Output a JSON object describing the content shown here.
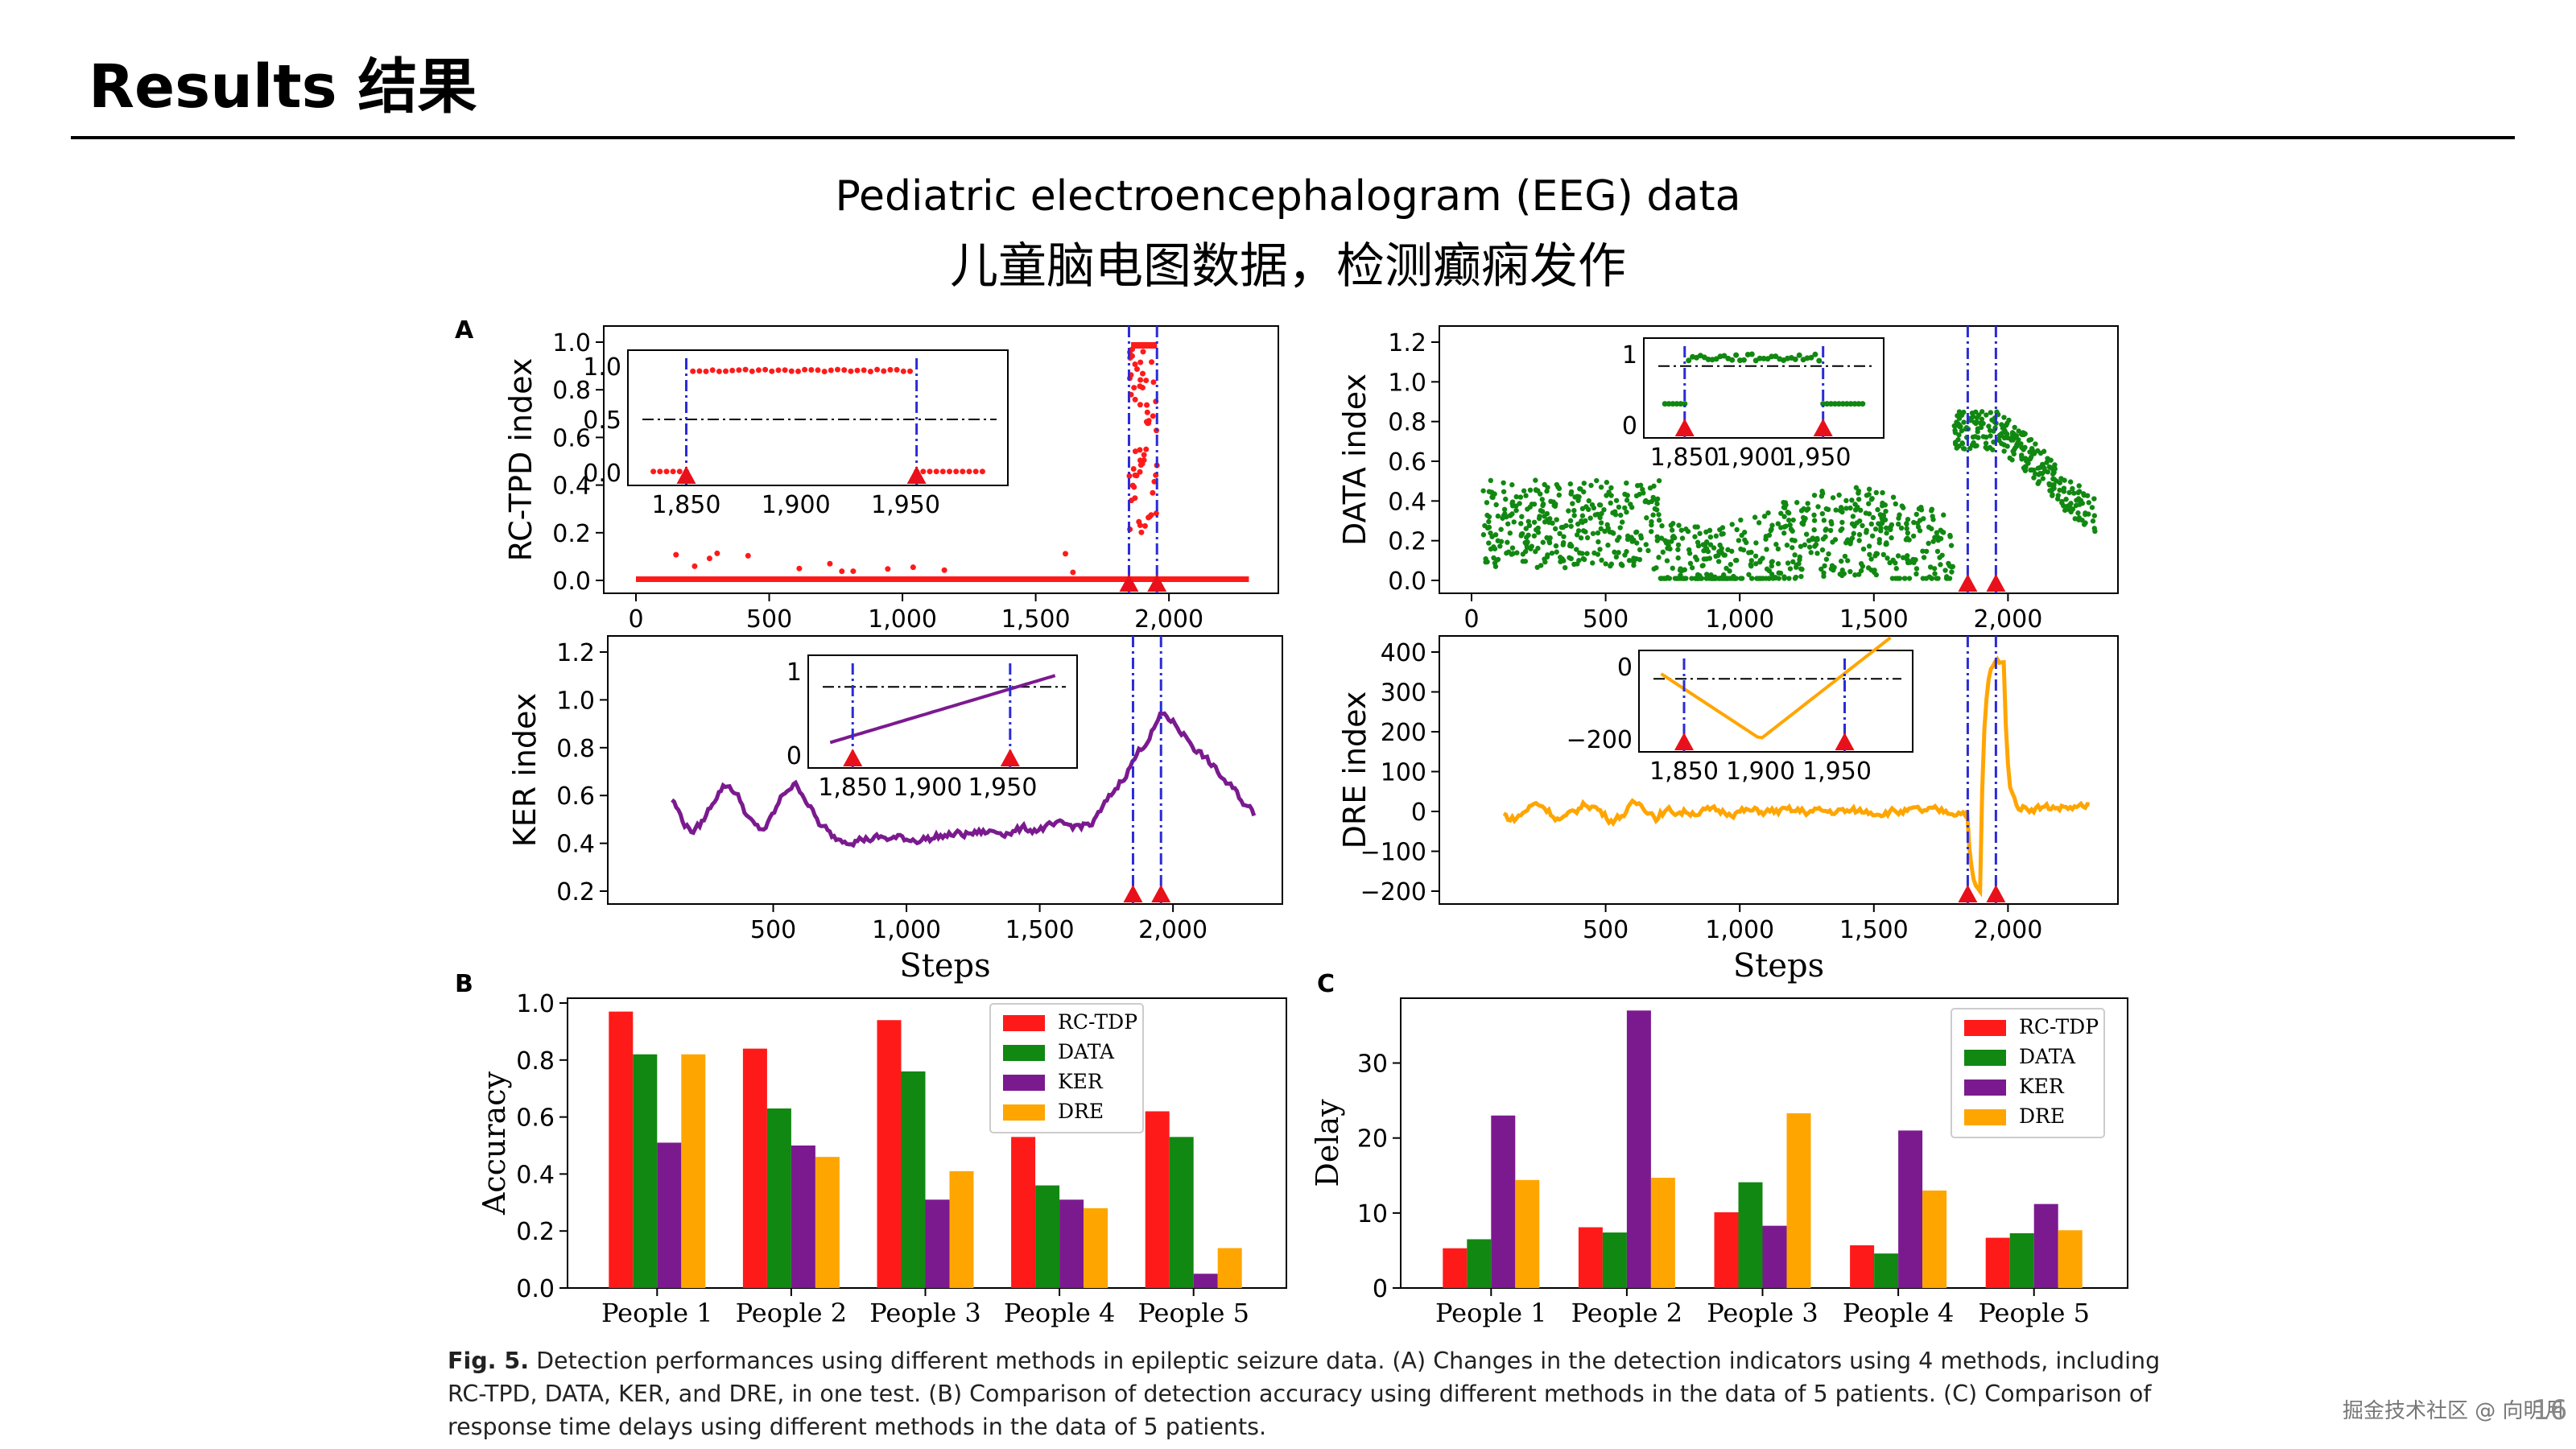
{
  "slide": {
    "title": "Results 结果",
    "headline_en": "Pediatric electroencephalogram (EEG) data",
    "headline_zh": "儿童脑电图数据，检测癫痫发作",
    "caption_fig": "Fig. 5.",
    "caption_text": "Detection performances using different methods in epileptic seizure data. (A) Changes in the detection indicators using 4 methods, including RC-TPD, DATA, KER, and DRE, in one test. (B) Comparison of detection accuracy using different methods in the data of 5 patients. (C) Comparison of response time delays using different methods in the data of 5 patients.",
    "watermark": "掘金技术社区 @ 向明月",
    "page_number": "16"
  },
  "panel_labels": [
    "A",
    "B",
    "C"
  ],
  "colors": {
    "rc_tdp": "#ff1a1a",
    "data": "#118811",
    "ker": "#7b1a8f",
    "dre": "#ffa500",
    "marker": "#e8101a",
    "vline": "#2b2bd6"
  },
  "chart_data": [
    {
      "type": "scatter",
      "ylabel": "RC-TPD index",
      "xlim": [
        0,
        2350
      ],
      "ylim": [
        0,
        1.0
      ],
      "xticks": [
        "0",
        "500",
        "1,000",
        "1,500",
        "2,000"
      ],
      "yticks": [
        "0.0",
        "0.2",
        "0.4",
        "0.6",
        "0.8",
        "1.0"
      ],
      "change_points": [
        1850,
        1955
      ],
      "inset": {
        "xticks": [
          "1,850",
          "1,900",
          "1,950"
        ],
        "yticks": [
          "0.0",
          "0.5",
          "1.0"
        ],
        "threshold": 0.5
      }
    },
    {
      "type": "scatter",
      "ylabel": "DATA index",
      "xlim": [
        0,
        2350
      ],
      "ylim": [
        0,
        1.2
      ],
      "xticks": [
        "0",
        "500",
        "1,000",
        "1,500",
        "2,000"
      ],
      "yticks": [
        "0.0",
        "0.2",
        "0.4",
        "0.6",
        "0.8",
        "1.0",
        "1.2"
      ],
      "change_points": [
        1850,
        1955
      ],
      "inset": {
        "xticks": [
          "1,850",
          "1,900",
          "1,950"
        ],
        "yticks": [
          "0",
          "1"
        ]
      }
    },
    {
      "type": "line",
      "ylabel": "KER index",
      "xlabel": "Steps",
      "xlim": [
        0,
        2350
      ],
      "ylim": [
        0.2,
        1.2
      ],
      "xticks": [
        "500",
        "1,000",
        "1,500",
        "2,000"
      ],
      "yticks": [
        "0.2",
        "0.4",
        "0.6",
        "0.8",
        "1.0",
        "1.2"
      ],
      "change_points": [
        1850,
        1955
      ],
      "inset": {
        "xticks": [
          "1,850",
          "1,900",
          "1,950"
        ],
        "yticks": [
          "0",
          "1"
        ]
      }
    },
    {
      "type": "line",
      "ylabel": "DRE index",
      "xlabel": "Steps",
      "xlim": [
        0,
        2350
      ],
      "ylim": [
        -200,
        400
      ],
      "xticks": [
        "500",
        "1,000",
        "1,500",
        "2,000"
      ],
      "yticks": [
        "−200",
        "−100",
        "0",
        "100",
        "200",
        "300",
        "400"
      ],
      "change_points": [
        1850,
        1955
      ],
      "inset": {
        "xticks": [
          "1,850",
          "1,900",
          "1,950"
        ],
        "yticks": [
          "−200",
          "0"
        ]
      }
    },
    {
      "type": "bar",
      "ylabel": "Accuracy",
      "ylim": [
        0,
        1.0
      ],
      "yticks": [
        "0.0",
        "0.2",
        "0.4",
        "0.6",
        "0.8",
        "1.0"
      ],
      "categories": [
        "People 1",
        "People 2",
        "People 3",
        "People 4",
        "People 5"
      ],
      "series": [
        {
          "name": "RC-TDP",
          "values": [
            0.97,
            0.84,
            0.94,
            0.53,
            0.62
          ]
        },
        {
          "name": "DATA",
          "values": [
            0.82,
            0.63,
            0.76,
            0.36,
            0.53
          ]
        },
        {
          "name": "KER",
          "values": [
            0.51,
            0.5,
            0.31,
            0.31,
            0.05
          ]
        },
        {
          "name": "DRE",
          "values": [
            0.82,
            0.46,
            0.41,
            0.28,
            0.14
          ]
        }
      ],
      "legend": "top-right"
    },
    {
      "type": "bar",
      "ylabel": "Delay",
      "ylim": [
        0,
        38
      ],
      "yticks": [
        "0",
        "10",
        "20",
        "30"
      ],
      "categories": [
        "People 1",
        "People 2",
        "People 3",
        "People 4",
        "People 5"
      ],
      "series": [
        {
          "name": "RC-TDP",
          "values": [
            5.3,
            8.1,
            10.1,
            5.7,
            6.7
          ]
        },
        {
          "name": "DATA",
          "values": [
            6.5,
            7.4,
            14.1,
            4.6,
            7.3
          ]
        },
        {
          "name": "KER",
          "values": [
            23.0,
            37.0,
            8.3,
            21.0,
            11.2
          ]
        },
        {
          "name": "DRE",
          "values": [
            14.4,
            14.7,
            23.3,
            13.0,
            7.7
          ]
        }
      ],
      "legend": "top-right"
    }
  ]
}
